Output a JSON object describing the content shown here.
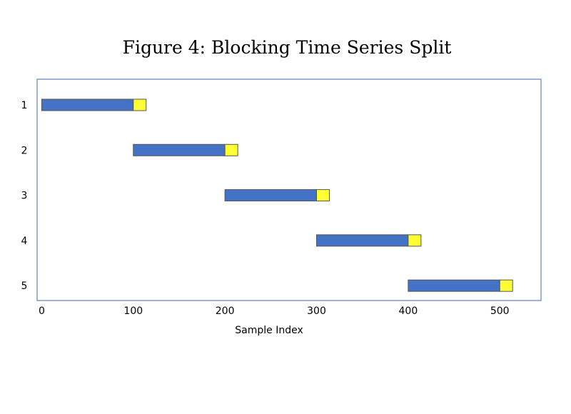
{
  "chart_data": {
    "type": "bar",
    "title": "Figure 4: Blocking Time Series Split",
    "xlabel": "Sample Index",
    "ylabel": "",
    "xlim": [
      -5,
      545
    ],
    "xticks": [
      "0",
      "100",
      "200",
      "300",
      "400",
      "500"
    ],
    "categories": [
      "1",
      "2",
      "3",
      "4",
      "5"
    ],
    "legend": "none",
    "grid": false,
    "colors": {
      "train": "#4472C4",
      "test": "#FFFF33",
      "frame": "#7F9ACB",
      "mark_edge": "#555555"
    },
    "series": [
      {
        "values": [
          [
            0,
            100
          ],
          [
            100,
            200
          ],
          [
            200,
            300
          ],
          [
            300,
            400
          ],
          [
            400,
            500
          ]
        ]
      },
      {
        "values": [
          [
            100,
            114
          ],
          [
            200,
            214
          ],
          [
            300,
            314
          ],
          [
            400,
            414
          ],
          [
            500,
            514
          ]
        ]
      }
    ]
  }
}
